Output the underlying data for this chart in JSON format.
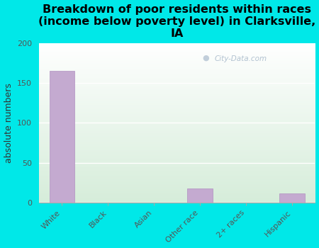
{
  "categories": [
    "White",
    "Black",
    "Asian",
    "Other race",
    "2+ races",
    "Hispanic"
  ],
  "values": [
    165,
    0,
    0,
    18,
    0,
    12
  ],
  "bar_color": "#c4aad0",
  "bar_edgecolor": "#b090c0",
  "title": "Breakdown of poor residents within races\n(income below poverty level) in Clarksville,\nIA",
  "ylabel": "absolute numbers",
  "ylim": [
    0,
    200
  ],
  "yticks": [
    0,
    50,
    100,
    150,
    200
  ],
  "background_color": "#00e8e8",
  "plot_bg_top": "#d6edda",
  "plot_bg_bottom": "#ffffff",
  "grid_color": "#e8e8e8",
  "title_fontsize": 11.5,
  "ylabel_fontsize": 9,
  "tick_fontsize": 8,
  "watermark": "City-Data.com"
}
